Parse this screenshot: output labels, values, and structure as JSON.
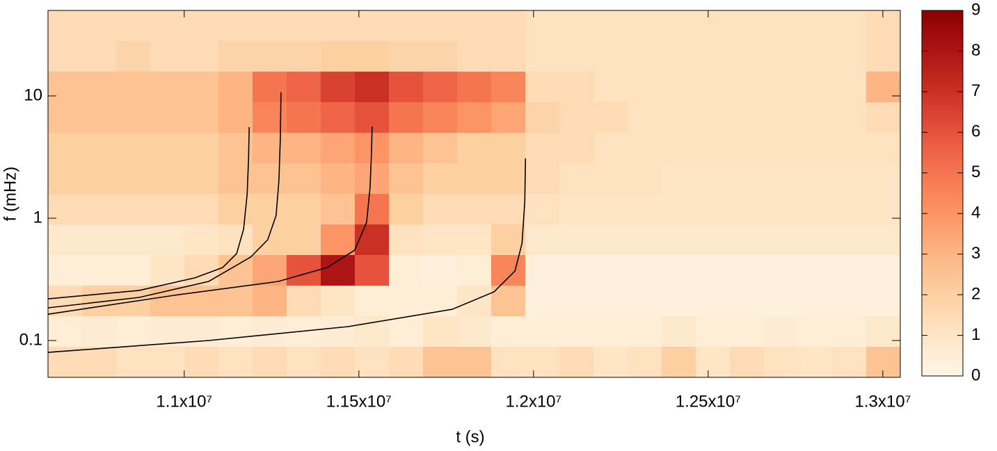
{
  "chart_data": {
    "type": "heatmap",
    "xlabel": "t (s)",
    "ylabel": "f (mHz)",
    "xlim": [
      10610000,
      13050000
    ],
    "xticks": [
      {
        "value": 11000000,
        "label": "1.1x10⁷"
      },
      {
        "value": 11500000,
        "label": "1.15x10⁷"
      },
      {
        "value": 12000000,
        "label": "1.2x10⁷"
      },
      {
        "value": 12500000,
        "label": "1.25x10⁷"
      },
      {
        "value": 13000000,
        "label": "1.3x10⁷"
      }
    ],
    "ylim": [
      0.05,
      50
    ],
    "ylog": true,
    "yticks": [
      0.1,
      1,
      10
    ],
    "xbins": [
      10610000,
      10707600,
      10805200,
      10902800,
      11000400,
      11098000,
      11195600,
      11293200,
      11390800,
      11488400,
      11586000,
      11683600,
      11781200,
      11878800,
      11976400,
      12074000,
      12171600,
      12269200,
      12366800,
      12464400,
      12562000,
      12659600,
      12757200,
      12854800,
      12952400,
      13050000
    ],
    "ybins": [
      50,
      28.1,
      15.8,
      8.89,
      5,
      2.81,
      1.58,
      0.889,
      0.5,
      0.281,
      0.158,
      0.0889,
      0.05
    ],
    "z": [
      [
        1.5,
        1.5,
        1.5,
        1.5,
        1.5,
        1.5,
        1.5,
        1.5,
        1.5,
        1.5,
        1.5,
        1.5,
        1.5,
        1.5,
        1.2,
        1.2,
        1.2,
        1.2,
        1.2,
        1.2,
        1.2,
        1.2,
        1.2,
        1.2,
        1.5
      ],
      [
        1.5,
        1.5,
        1.8,
        1.5,
        1.5,
        1.8,
        1.8,
        1.8,
        2,
        2,
        1.8,
        1.8,
        1.5,
        1.5,
        1.2,
        1.2,
        1.2,
        1.2,
        1.2,
        1.2,
        1.2,
        1.2,
        1.2,
        1.2,
        1.5
      ],
      [
        2.5,
        2.5,
        2.5,
        2.5,
        2.5,
        3,
        5,
        5.5,
        6.5,
        7,
        6,
        5.5,
        5,
        4.5,
        1.5,
        1.5,
        1.2,
        1.2,
        1.2,
        1.2,
        1.2,
        1.2,
        1.2,
        1.2,
        3
      ],
      [
        2.5,
        2.5,
        2.5,
        2.5,
        2.5,
        3,
        4.5,
        5,
        5.5,
        6,
        5,
        4.5,
        4,
        3.5,
        1.8,
        1.5,
        1.5,
        1.2,
        1.2,
        1.2,
        1.2,
        1.2,
        1.2,
        1.2,
        1.5
      ],
      [
        2,
        2,
        2,
        2,
        2,
        2.5,
        3,
        3,
        3.5,
        4,
        3,
        2.5,
        2,
        2,
        1.5,
        1.5,
        1.2,
        1.2,
        1.2,
        1.2,
        1.2,
        1.2,
        1.2,
        1.2,
        1.2
      ],
      [
        2,
        2,
        2,
        2,
        2,
        2.5,
        2.5,
        2.5,
        3,
        3.5,
        2.5,
        2,
        2,
        2,
        1.5,
        1.2,
        1.2,
        1.2,
        1,
        1,
        1,
        1,
        1,
        1,
        1
      ],
      [
        1.5,
        1.5,
        1.5,
        1.5,
        1.5,
        2,
        2,
        2,
        2.5,
        5,
        2,
        1.5,
        1.5,
        1.5,
        1.2,
        1,
        1,
        1,
        1,
        1,
        1,
        1,
        1,
        1,
        1
      ],
      [
        0.8,
        0.8,
        0.8,
        0.8,
        1,
        1.2,
        2,
        2,
        4,
        7,
        1.2,
        1,
        1,
        2,
        0.8,
        0.8,
        0.8,
        0.8,
        0.8,
        0.8,
        0.8,
        0.8,
        0.8,
        0.8,
        0.8
      ],
      [
        0.5,
        0.5,
        0.5,
        1,
        1.5,
        2.5,
        3.5,
        6,
        8,
        6,
        0.5,
        0.3,
        0.5,
        4.5,
        0.3,
        0.3,
        0.3,
        0.3,
        0.3,
        0.3,
        0.3,
        0.3,
        0.3,
        0.3,
        0.3
      ],
      [
        1.5,
        2,
        2,
        2.5,
        2.5,
        2.5,
        3,
        1.5,
        1,
        0.5,
        0.5,
        0.5,
        1,
        2.5,
        0.3,
        0.3,
        0.3,
        0.3,
        0.3,
        0.3,
        0.3,
        0.3,
        0.3,
        0.3,
        0.3
      ],
      [
        0.5,
        0.6,
        0.5,
        0.6,
        0.6,
        0.5,
        0.6,
        0.5,
        0.6,
        0.8,
        0.5,
        1,
        0.8,
        0.5,
        0.5,
        0.5,
        0.5,
        0.5,
        0.8,
        0.5,
        0.5,
        0.6,
        0.5,
        0.5,
        0.8
      ],
      [
        1.5,
        1.5,
        1.2,
        1.2,
        1.5,
        1.2,
        1.5,
        1.2,
        1.5,
        1.2,
        1.5,
        2.5,
        2.5,
        1.2,
        1.2,
        1.5,
        1,
        1.2,
        2,
        1,
        1.5,
        1.2,
        1,
        1.2,
        2.5
      ]
    ],
    "colorbar": {
      "lim": [
        0,
        9
      ],
      "ticks": [
        0,
        1,
        2,
        3,
        4,
        5,
        6,
        7,
        8,
        9
      ],
      "colors": [
        "#fff5e6",
        "#fee5c6",
        "#fdd0a2",
        "#fdb584",
        "#fc9466",
        "#f57550",
        "#e5533c",
        "#cc3024",
        "#ad1414",
        "#8c0000"
      ]
    },
    "series": [
      {
        "color": "#000000",
        "x": [
          10610000,
          10871000,
          11030000,
          11110000,
          11150000,
          11170000,
          11180000,
          11184000,
          11186000
        ],
        "values": [
          0.219,
          0.257,
          0.325,
          0.395,
          0.513,
          0.811,
          1.56,
          3.0,
          5.55
        ]
      },
      {
        "color": "#000000",
        "x": [
          10610000,
          10871000,
          11070000,
          11190000,
          11239000,
          11263000,
          11271000,
          11275000,
          11277000
        ],
        "values": [
          0.185,
          0.225,
          0.304,
          0.481,
          0.667,
          1.05,
          2.03,
          4.44,
          10.7
        ]
      },
      {
        "color": "#000000",
        "x": [
          10610000,
          10971000,
          11269000,
          11409000,
          11488000,
          11522000,
          11532000,
          11536000,
          11538000
        ],
        "values": [
          0.164,
          0.234,
          0.304,
          0.395,
          0.548,
          0.924,
          1.78,
          3.42,
          5.62
        ]
      },
      {
        "color": "#000000",
        "x": [
          10610000,
          11070000,
          11469000,
          11767000,
          11887000,
          11947000,
          11967000,
          11975000,
          11977000
        ],
        "values": [
          0.08,
          0.1,
          0.13,
          0.18,
          0.25,
          0.37,
          0.624,
          1.37,
          3.08
        ]
      }
    ]
  }
}
